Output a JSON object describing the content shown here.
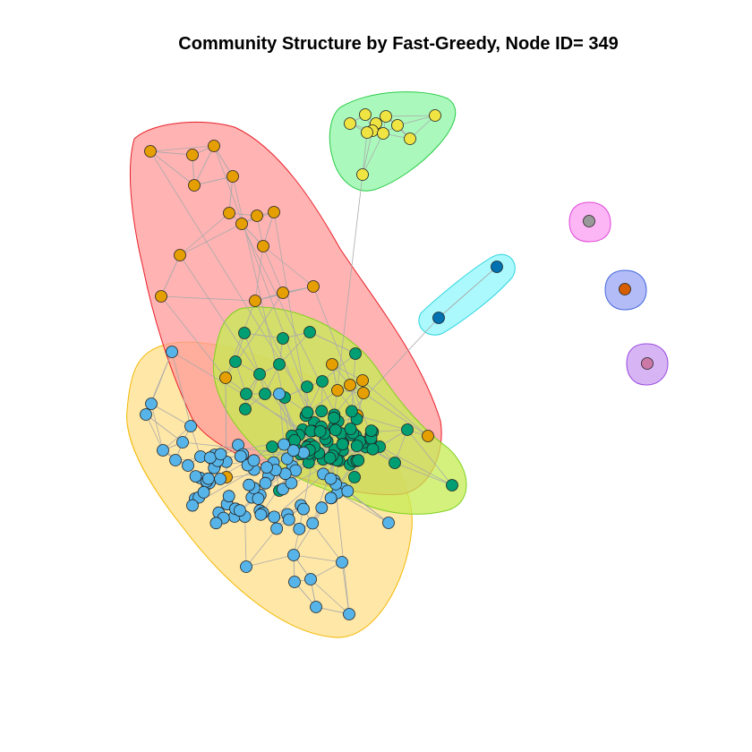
{
  "title": "Community Structure by Fast-Greedy, Node ID= 349",
  "communities": [
    {
      "id": "red",
      "fill": "#ff9a9a",
      "stroke": "#e8202a",
      "node_color": "#e69f00"
    },
    {
      "id": "yellow",
      "fill": "#ffdf8a",
      "stroke": "#f3b800",
      "node_color": "#56b4e9"
    },
    {
      "id": "lime",
      "fill": "#c6ec52",
      "stroke": "#7fd11f",
      "node_color": "#009e73"
    },
    {
      "id": "green",
      "fill": "#8ff5a7",
      "stroke": "#27cc45",
      "node_color": "#f0e442"
    },
    {
      "id": "cyan",
      "fill": "#8ff7fb",
      "stroke": "#2fd4e0",
      "node_color": "#0072b2"
    },
    {
      "id": "magenta",
      "fill": "#fb9ef2",
      "stroke": "#e046d8",
      "node_color": "#999999"
    },
    {
      "id": "blue",
      "fill": "#9aa6f4",
      "stroke": "#4466dd",
      "node_color": "#d55e00"
    },
    {
      "id": "purple",
      "fill": "#c99cf2",
      "stroke": "#9a4ee0",
      "node_color": "#cc79a7"
    }
  ],
  "edge_color": "#aaaaaa",
  "node_outline": "#222222"
}
